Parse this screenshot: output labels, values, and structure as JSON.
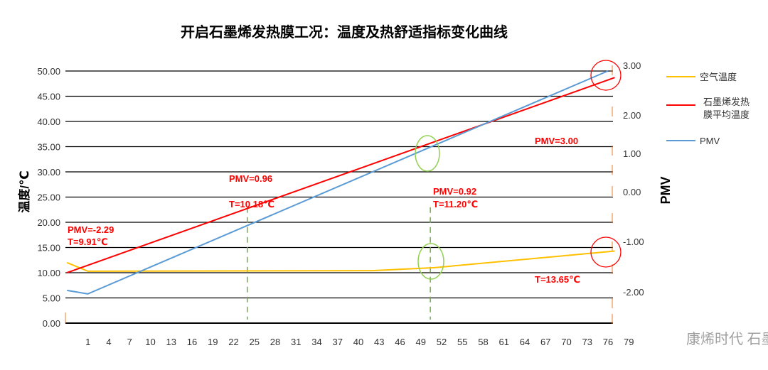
{
  "chart_data": {
    "type": "line",
    "title": "开启石墨烯发热膜工况：温度及热舒适指标变化曲线",
    "ylabel": "温度/℃",
    "y2label": "PMV",
    "ylim": [
      0,
      50
    ],
    "yticks": [
      "0.00",
      "5.00",
      "10.00",
      "15.00",
      "20.00",
      "25.00",
      "30.00",
      "35.00",
      "40.00",
      "45.00",
      "50.00"
    ],
    "y2ticks": [
      "3.00",
      "2.00",
      "1.00",
      "0.00",
      "-1.00",
      "-2.00"
    ],
    "xticks": [
      "1",
      "4",
      "7",
      "10",
      "13",
      "16",
      "19",
      "22",
      "25",
      "28",
      "31",
      "34",
      "37",
      "40",
      "43",
      "46",
      "49",
      "52",
      "55",
      "58",
      "61",
      "64",
      "67",
      "70",
      "73",
      "76",
      "79"
    ],
    "grid": true,
    "legend_position": "right",
    "series": [
      {
        "name": "空气温度",
        "color": "#FFC000",
        "points": [
          [
            -1,
            12
          ],
          [
            2,
            10.3
          ],
          [
            43,
            10.4
          ],
          [
            52,
            11
          ],
          [
            78,
            14.3
          ]
        ]
      },
      {
        "name": "石墨烯发热膜平均温度",
        "name_lines": [
          "石墨烯发热",
          "膜平均温度"
        ],
        "color": "#FF0000",
        "points": [
          [
            -1,
            10
          ],
          [
            78,
            48.7
          ]
        ]
      },
      {
        "name": "PMV",
        "color": "#5B9BD5",
        "points": [
          [
            -1,
            6.5
          ],
          [
            2,
            5.8
          ],
          [
            77,
            50
          ]
        ]
      }
    ],
    "annotations": [
      "PMV=-2.29",
      "T=9.91℃",
      "PMV=0.96",
      "T=10.18℃",
      "PMV=0.92",
      "T=11.20℃",
      "PMV=3.00",
      "T=13.65℃"
    ],
    "markers": {
      "dashed_lines_x": [
        25,
        51.4
      ],
      "dashed_color": "#70AD47",
      "circle_color": "#FF0000"
    }
  },
  "watermark": "康烯时代 石墨烯"
}
